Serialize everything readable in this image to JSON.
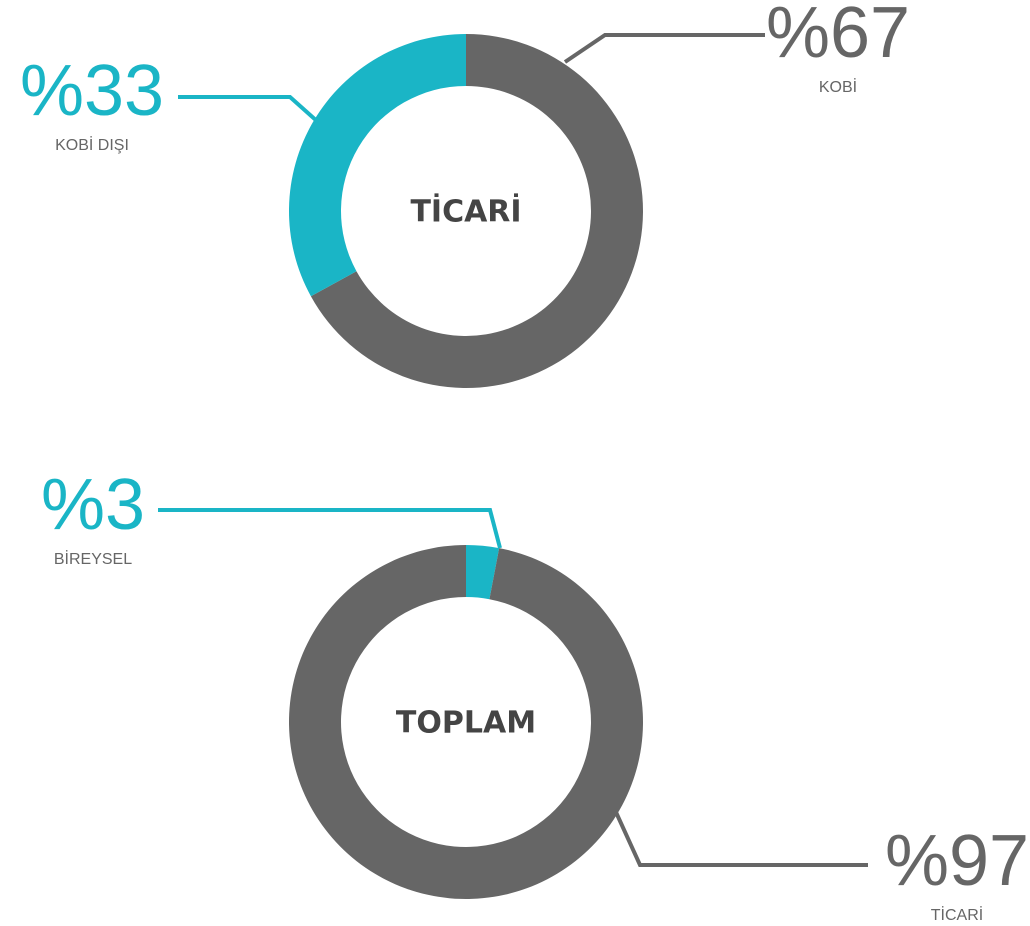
{
  "chart_data": [
    {
      "type": "pie",
      "title": "TİCARİ",
      "categories": [
        "KOBİ",
        "KOBİ DIŞI"
      ],
      "values": [
        67,
        33
      ],
      "value_labels": [
        "%67",
        "%33"
      ],
      "colors": [
        "#666666",
        "#1ab5c6"
      ]
    },
    {
      "type": "pie",
      "title": "TOPLAM",
      "categories": [
        "BİREYSEL",
        "TİCARİ"
      ],
      "values": [
        3,
        97
      ],
      "value_labels": [
        "%3",
        "%97"
      ],
      "colors": [
        "#1ab5c6",
        "#666666"
      ]
    }
  ]
}
